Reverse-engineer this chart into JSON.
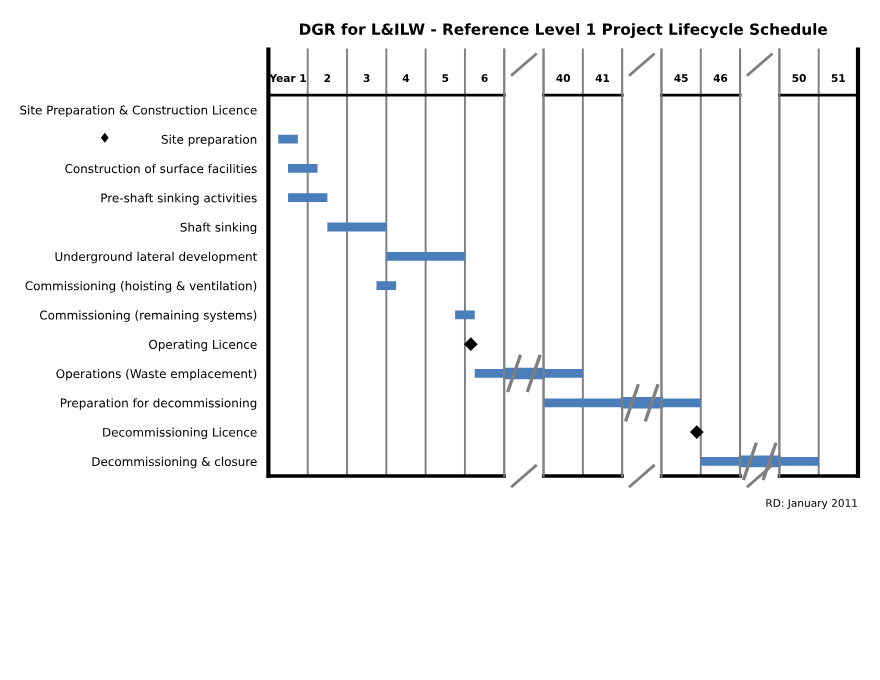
{
  "chart_data": [
    {
      "type": "bar",
      "orientation": "horizontal",
      "title": "DGR for L&ILW - Reference Level 1 Project Lifecycle Schedule",
      "categories": [
        "Site Preparation & Construction Licence",
        "Site preparation",
        "Construction of surface facilities",
        "Pre-shaft sinking activities",
        "Shaft sinking",
        "Underground lateral development",
        "Commissioning (hoisting & ventilation)",
        "Commissioning (remaining systems)",
        "Operating Licence",
        "Operations (Waste emplacement)",
        "Preparation for decommissioning",
        "Decommissioning Licence",
        "Decommissioning & closure"
      ],
      "series": [
        {
          "type": "bar",
          "color": "#4a7ebb",
          "base": [
            null,
            0.75,
            1.0,
            1.0,
            2.0,
            3.5,
            3.25,
            5.25,
            null,
            5.75,
            null,
            null,
            null
          ],
          "values": [
            null,
            0.5,
            0.75,
            1.0,
            1.5,
            2.0,
            0.5,
            0.5,
            null,
            0.75,
            null,
            null,
            null
          ]
        },
        {
          "type": "scatter",
          "color": "#000000",
          "marker": "diamond",
          "values": [
            null,
            null,
            null,
            null,
            null,
            null,
            null,
            null,
            5.65,
            null,
            null,
            null,
            null
          ]
        }
      ],
      "xlim": [
        0.5,
        6.5
      ],
      "xticks": [
        {
          "value": 1,
          "label": "Year 1"
        },
        2,
        3,
        4,
        5,
        6
      ],
      "ref_lines": [
        {
          "axis": "x",
          "value": 1.5,
          "color": "#808080"
        },
        {
          "axis": "x",
          "value": 2.5,
          "color": "#808080"
        },
        {
          "axis": "x",
          "value": 3.5,
          "color": "#808080"
        },
        {
          "axis": "x",
          "value": 4.5,
          "color": "#808080"
        },
        {
          "axis": "x",
          "value": 5.5,
          "color": "#808080"
        }
      ],
      "annotations": [
        "♦"
      ]
    },
    {
      "type": "bar",
      "orientation": "horizontal",
      "series": [
        {
          "type": "bar",
          "color": "#4a7ebb",
          "base": [
            null,
            null,
            null,
            null,
            null,
            null,
            null,
            null,
            null,
            39.5,
            39.5,
            null,
            null
          ],
          "values": [
            null,
            null,
            null,
            null,
            null,
            null,
            null,
            null,
            null,
            1.0,
            2.0,
            null,
            null
          ]
        }
      ],
      "xlim": [
        39.5,
        41.5
      ],
      "xticks": [
        40,
        41
      ],
      "tick_labels": "x",
      "ref_lines": [
        {
          "axis": "x",
          "value": 40.5,
          "color": "#808080"
        }
      ]
    },
    {
      "type": "bar",
      "orientation": "horizontal",
      "series": [
        {
          "type": "bar",
          "color": "#4a7ebb",
          "base": [
            null,
            null,
            null,
            null,
            null,
            null,
            null,
            null,
            null,
            null,
            44.5,
            null,
            45.5
          ],
          "values": [
            null,
            null,
            null,
            null,
            null,
            null,
            null,
            null,
            null,
            null,
            1.0,
            null,
            1.0
          ]
        },
        {
          "type": "scatter",
          "color": "#000000",
          "marker": "diamond",
          "values": [
            null,
            null,
            null,
            null,
            null,
            null,
            null,
            null,
            null,
            null,
            null,
            45.4,
            null
          ]
        }
      ],
      "xlim": [
        44.5,
        46.5
      ],
      "xticks": [
        45,
        46
      ],
      "tick_labels": "x",
      "ref_lines": [
        {
          "axis": "x",
          "value": 45.5,
          "color": "#808080"
        }
      ]
    },
    {
      "type": "bar",
      "orientation": "horizontal",
      "series": [
        {
          "type": "bar",
          "color": "#4a7ebb",
          "base": [
            null,
            null,
            null,
            null,
            null,
            null,
            null,
            null,
            null,
            null,
            null,
            null,
            49.5
          ],
          "values": [
            null,
            null,
            null,
            null,
            null,
            null,
            null,
            null,
            null,
            null,
            null,
            null,
            1.0
          ]
        }
      ],
      "xlim": [
        49.5,
        51.5
      ],
      "xticks": [
        50,
        51
      ],
      "tick_labels": "x",
      "ref_lines": [
        {
          "axis": "x",
          "value": 50.5,
          "color": "#808080"
        }
      ],
      "annotations": [
        "RD: January 2011"
      ]
    }
  ]
}
